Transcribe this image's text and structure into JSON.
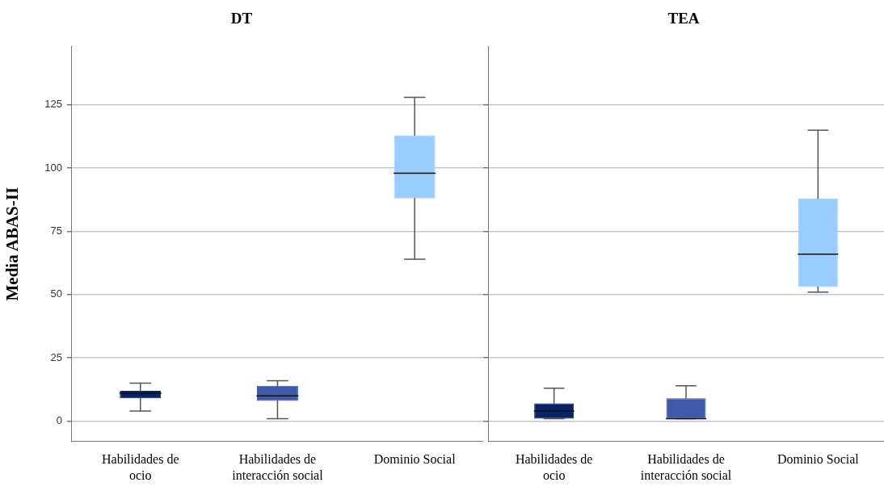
{
  "chart_data": [
    {
      "type": "box",
      "title": "DT",
      "ylabel": "Media ABAS-II",
      "categories": [
        "Habilidades de ocio",
        "Habilidades de interacción social",
        "Dominio Social"
      ],
      "colors": [
        "#0b2266",
        "#3f5aa8",
        "#99ccff"
      ],
      "boxes": [
        {
          "low": 4,
          "q1": 9,
          "median": 11,
          "q3": 12,
          "high": 15
        },
        {
          "low": 1,
          "q1": 8,
          "median": 10,
          "q3": 14,
          "high": 16
        },
        {
          "low": 64,
          "q1": 88,
          "median": 98,
          "q3": 113,
          "high": 128
        }
      ],
      "ylim": [
        -8,
        148
      ],
      "yticks": [
        0,
        25,
        50,
        75,
        100,
        125
      ],
      "grid": "y",
      "legend": false
    },
    {
      "type": "box",
      "title": "TEA",
      "categories": [
        "Habilidades de ocio",
        "Habilidades de interacción social",
        "Dominio Social"
      ],
      "colors": [
        "#0b2266",
        "#3f5aa8",
        "#99ccff"
      ],
      "boxes": [
        {
          "low": 1,
          "q1": 1,
          "median": 4,
          "q3": 7,
          "high": 13
        },
        {
          "low": 1,
          "q1": 1,
          "median": 1,
          "q3": 9,
          "high": 14
        },
        {
          "low": 51,
          "q1": 53,
          "median": 66,
          "q3": 88,
          "high": 115
        }
      ],
      "ylim": [
        -8,
        148
      ],
      "yticks": [
        0,
        25,
        50,
        75,
        100,
        125
      ],
      "grid": "y",
      "legend": false,
      "tick_labels": "x"
    }
  ]
}
